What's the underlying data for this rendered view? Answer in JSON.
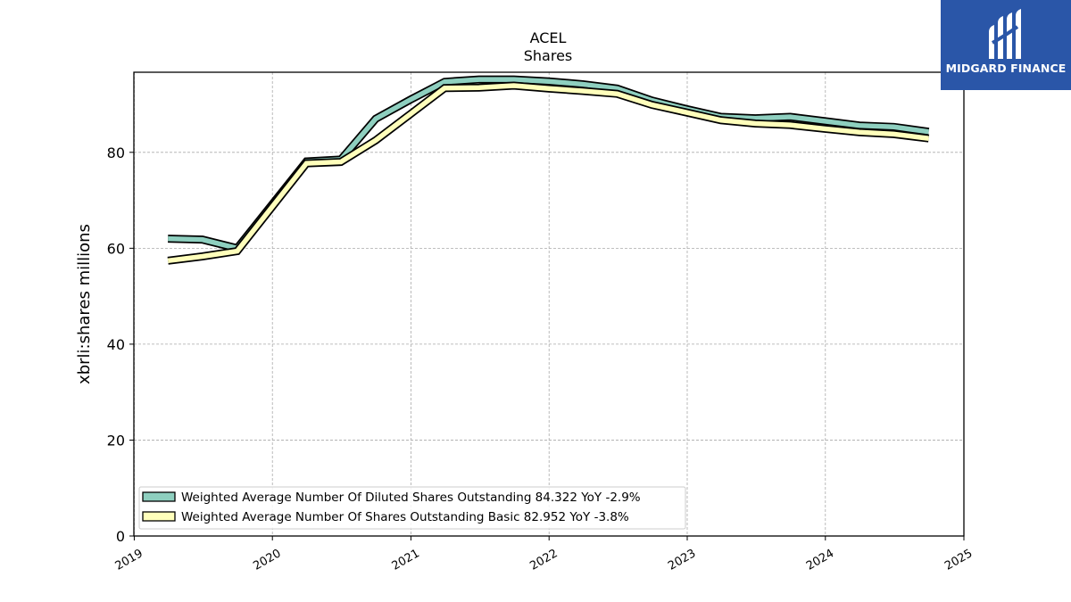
{
  "logo": {
    "text": "MIDGARD FINANCE",
    "bg_color": "#2a56a8"
  },
  "chart_data": {
    "type": "line",
    "title": "ACEL",
    "subtitle": "Shares",
    "ylabel": "xbrli:shares millions",
    "xlabel": "",
    "xlim": [
      "2018-12-31",
      "2025-01-01"
    ],
    "ylim": [
      0,
      96.7
    ],
    "x_ticks": [
      "2019",
      "2020",
      "2021",
      "2022",
      "2023",
      "2024",
      "2025"
    ],
    "y_ticks": [
      0,
      20,
      40,
      60,
      80
    ],
    "grid": true,
    "legend_position": "lower-left",
    "series": [
      {
        "name": "Weighted Average Number Of Diluted Shares Outstanding  84.322 YoY -2.9%",
        "color": "#8ecfbf",
        "points": [
          [
            "2019-03-31",
            62.0
          ],
          [
            "2019-06-30",
            61.8
          ],
          [
            "2019-09-30",
            60.0
          ],
          [
            "2020-03-31",
            78.1
          ],
          [
            "2020-06-30",
            78.5
          ],
          [
            "2020-09-30",
            87.0
          ],
          [
            "2020-12-31",
            91.0
          ],
          [
            "2021-03-31",
            94.7
          ],
          [
            "2021-06-30",
            95.2
          ],
          [
            "2021-09-30",
            95.2
          ],
          [
            "2021-12-31",
            94.8
          ],
          [
            "2022-03-31",
            94.2
          ],
          [
            "2022-06-30",
            93.3
          ],
          [
            "2022-09-30",
            90.8
          ],
          [
            "2022-12-31",
            89.0
          ],
          [
            "2023-03-31",
            87.4
          ],
          [
            "2023-06-30",
            87.1
          ],
          [
            "2023-09-30",
            87.4
          ],
          [
            "2023-12-31",
            86.5
          ],
          [
            "2024-03-31",
            85.6
          ],
          [
            "2024-06-30",
            85.3
          ],
          [
            "2024-09-30",
            84.3
          ]
        ]
      },
      {
        "name": "Weighted Average Number Of Shares Outstanding Basic  82.952 YoY -3.8%",
        "color": "#ffffbb",
        "points": [
          [
            "2019-03-31",
            57.4
          ],
          [
            "2019-06-30",
            58.3
          ],
          [
            "2019-09-30",
            59.4
          ],
          [
            "2020-03-31",
            77.7
          ],
          [
            "2020-06-30",
            78.0
          ],
          [
            "2020-09-30",
            82.5
          ],
          [
            "2020-12-31",
            88.0
          ],
          [
            "2021-03-31",
            93.4
          ],
          [
            "2021-06-30",
            93.5
          ],
          [
            "2021-09-30",
            93.9
          ],
          [
            "2021-12-31",
            93.3
          ],
          [
            "2022-03-31",
            92.8
          ],
          [
            "2022-06-30",
            92.2
          ],
          [
            "2022-09-30",
            89.9
          ],
          [
            "2022-12-31",
            88.3
          ],
          [
            "2023-03-31",
            86.7
          ],
          [
            "2023-06-30",
            86.0
          ],
          [
            "2023-09-30",
            85.7
          ],
          [
            "2023-12-31",
            84.9
          ],
          [
            "2024-03-31",
            84.2
          ],
          [
            "2024-06-30",
            83.8
          ],
          [
            "2024-09-30",
            82.9
          ]
        ]
      }
    ]
  }
}
